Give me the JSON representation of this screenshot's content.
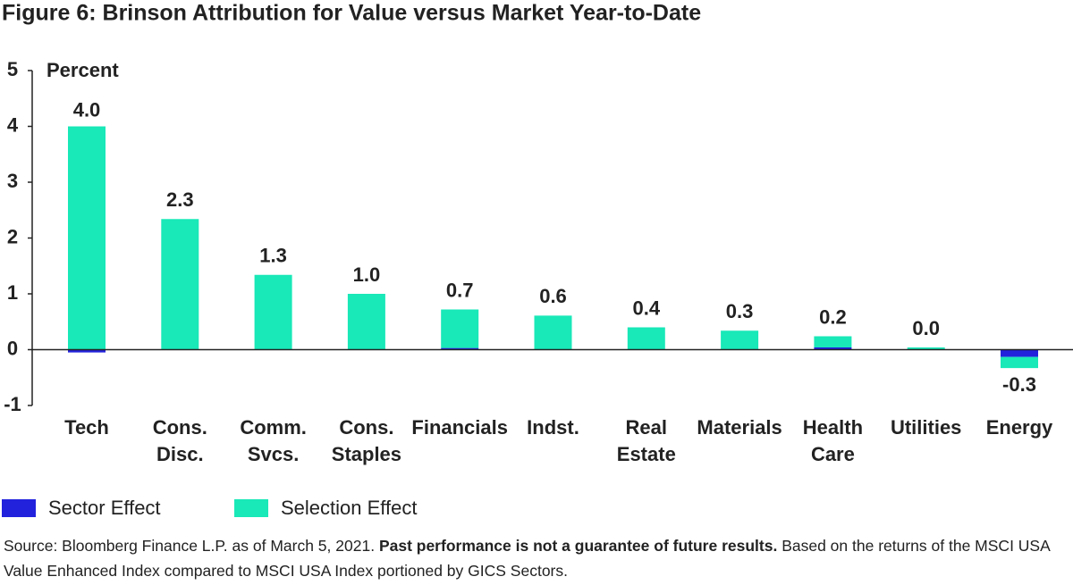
{
  "chart_data": {
    "type": "bar",
    "stacked": true,
    "title": "Figure 6: Brinson Attribution for Value versus Market Year-to-Date",
    "ylabel": "Percent",
    "categories": [
      "Tech",
      "Cons. Disc.",
      "Comm. Svcs.",
      "Cons. Staples",
      "Financials",
      "Indst.",
      "Real Estate",
      "Materials",
      "Health Care",
      "Utilities",
      "Energy"
    ],
    "series": [
      {
        "name": "Sector Effect",
        "color": "#2222dd",
        "values": [
          -0.05,
          0,
          0,
          0,
          0.03,
          0,
          0,
          0,
          0.04,
          0,
          -0.13
        ]
      },
      {
        "name": "Selection Effect",
        "color": "#19e8b8",
        "values": [
          4.0,
          2.34,
          1.34,
          1.0,
          0.69,
          0.61,
          0.4,
          0.34,
          0.2,
          0.04,
          -0.2
        ]
      }
    ],
    "totals": [
      3.95,
      2.34,
      1.34,
      1.0,
      0.72,
      0.61,
      0.4,
      0.34,
      0.24,
      0.04,
      -0.33
    ],
    "total_labels": [
      "4.0",
      "2.3",
      "1.3",
      "1.0",
      "0.7",
      "0.6",
      "0.4",
      "0.3",
      "0.2",
      "0.0",
      "-0.3"
    ],
    "ylim": [
      -1,
      5
    ],
    "yticks": [
      -1,
      0,
      1,
      2,
      3,
      4,
      5
    ],
    "source": {
      "prefix": "Source: Bloomberg Finance L.P. as of March 5, 2021.",
      "bold": "Past performance is not a guarantee of future results.",
      "suffix": "Based on the returns of the MSCI USA Value Enhanced Index compared to MSCI USA Index portioned by GICS Sectors."
    }
  }
}
